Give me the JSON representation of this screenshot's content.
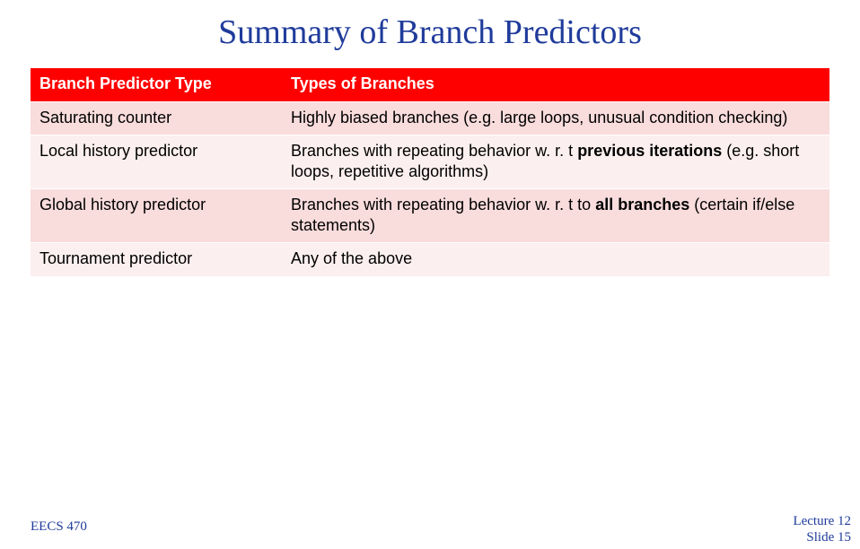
{
  "title": "Summary of Branch Predictors",
  "table": {
    "header": {
      "col1": "Branch Predictor Type",
      "col2": "Types of Branches"
    },
    "rows": [
      {
        "predictor": "Saturating counter",
        "desc_pre": "Highly biased branches (e.g. large loops, unusual condition checking)",
        "desc_bold": "",
        "desc_post": ""
      },
      {
        "predictor": "Local history predictor",
        "desc_pre": "Branches with repeating behavior w. r. t ",
        "desc_bold": "previous iterations",
        "desc_post": " (e.g. short loops, repetitive algorithms)"
      },
      {
        "predictor": "Global history predictor",
        "desc_pre": "Branches with repeating behavior w. r. t to ",
        "desc_bold": "all branches",
        "desc_post": " (certain if/else statements)"
      },
      {
        "predictor": "Tournament predictor",
        "desc_pre": "Any of the above",
        "desc_bold": "",
        "desc_post": ""
      }
    ]
  },
  "footer": {
    "left": "EECS 470",
    "right_line1": "Lecture 12",
    "right_line2": "Slide 15"
  },
  "style": {
    "title_color": "#1f3b9b",
    "header_bg": "#ff0000",
    "row_odd_bg": "#f9dcdc",
    "row_even_bg": "#fcefef",
    "footer_color": "#1f3b9b"
  }
}
